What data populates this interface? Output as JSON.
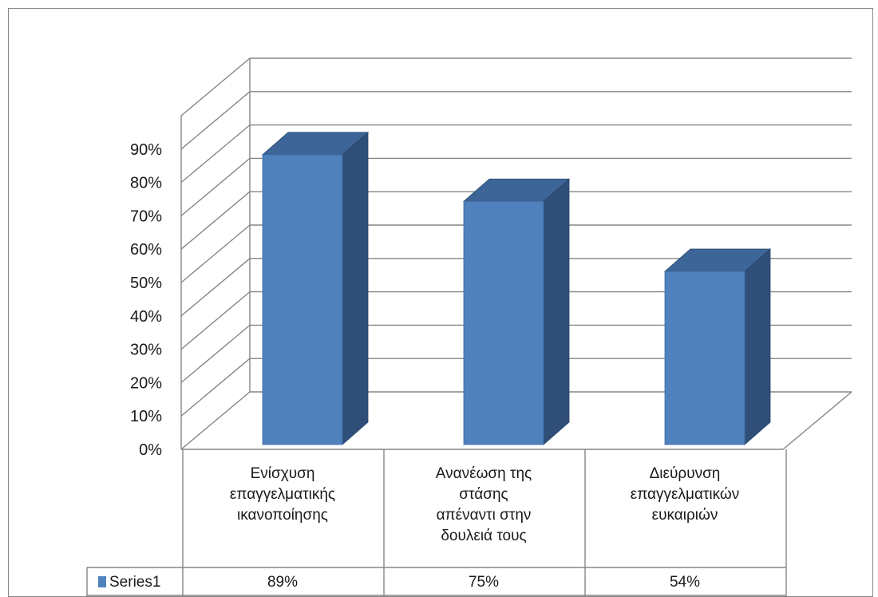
{
  "chart_data": {
    "type": "bar",
    "view": "3d-column",
    "categories": [
      [
        "Ενίσχυση",
        "επαγγελματικής",
        "ικανοποίησης"
      ],
      [
        "Ανανέωση της",
        "στάσης",
        "απέναντι στην",
        "δουλειά τους"
      ],
      [
        "Διεύρυνση",
        "επαγγελματικών",
        "ευκαιριών"
      ]
    ],
    "series": [
      {
        "name": "Series1",
        "values": [
          89,
          75,
          54
        ],
        "labels": [
          "89%",
          "75%",
          "54%"
        ]
      }
    ],
    "ylim": [
      0,
      90
    ],
    "y_ticks": [
      "0%",
      "10%",
      "20%",
      "30%",
      "40%",
      "50%",
      "60%",
      "70%",
      "80%",
      "90%"
    ],
    "grid": true,
    "data_table": true,
    "legend": "data-table",
    "colors": {
      "bar_front": "#4F81BD",
      "bar_side": "#2F4F78",
      "bar_top": "#3E6597",
      "grid": "#868686"
    }
  }
}
